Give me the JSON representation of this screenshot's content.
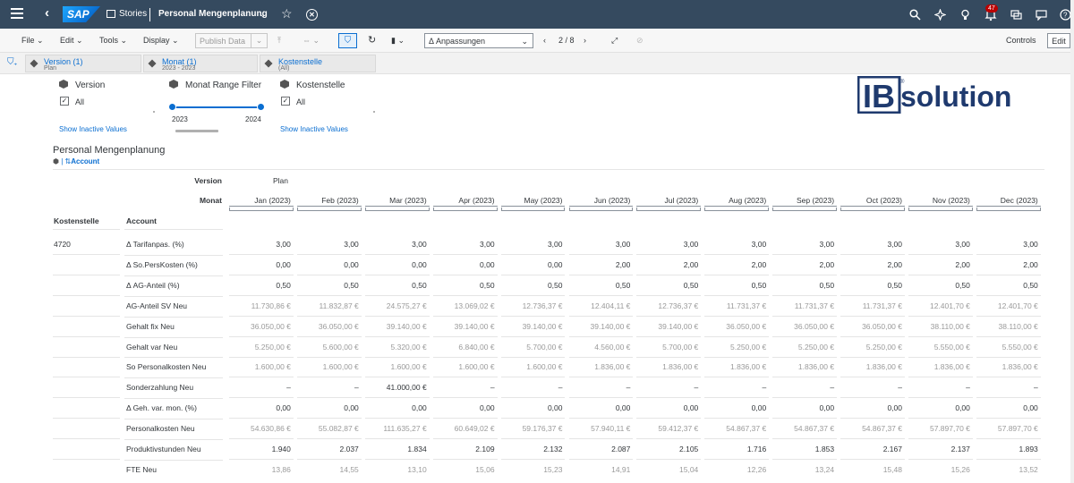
{
  "shell": {
    "product": "SAP",
    "section": "Stories",
    "title": "Personal Mengenplanung",
    "notifications": "47"
  },
  "toolbar": {
    "file": "File",
    "edit": "Edit",
    "tools": "Tools",
    "display": "Display",
    "publish": "Publish Data",
    "variant": "Δ Anpassungen",
    "page": "2 / 8",
    "controls": "Controls",
    "edit_btn": "Edit"
  },
  "filterbar": {
    "chips": [
      {
        "title": "Version (1)",
        "sub": "Plan"
      },
      {
        "title": "Monat (1)",
        "sub": "2023 - 2023"
      },
      {
        "title": "Kostenstelle",
        "sub": "(All)"
      }
    ]
  },
  "controls": {
    "version": {
      "label": "Version",
      "option": "All",
      "link": "Show Inactive Values"
    },
    "monat": {
      "label": "Monat Range Filter",
      "from": "2023",
      "to": "2024"
    },
    "kostenstelle": {
      "label": "Kostenstelle",
      "option": "All",
      "link": "Show Inactive Values"
    }
  },
  "logo": {
    "text": "IBsolution",
    "mark": "®"
  },
  "table": {
    "title": "Personal Mengenplanung",
    "sort_label": "Account",
    "version_label": "Version",
    "version_value": "Plan",
    "monat_label": "Monat",
    "col_kostenstelle": "Kostenstelle",
    "col_account": "Account",
    "kostenstelle_value": "4720",
    "months": [
      "Jan (2023)",
      "Feb (2023)",
      "Mar (2023)",
      "Apr (2023)",
      "May (2023)",
      "Jun (2023)",
      "Jul (2023)",
      "Aug (2023)",
      "Sep (2023)",
      "Oct (2023)",
      "Nov (2023)",
      "Dec (2023)"
    ],
    "rows": [
      {
        "label": "Δ Tarifanpas. (%)",
        "grey": false,
        "values": [
          "3,00",
          "3,00",
          "3,00",
          "3,00",
          "3,00",
          "3,00",
          "3,00",
          "3,00",
          "3,00",
          "3,00",
          "3,00",
          "3,00"
        ]
      },
      {
        "label": "Δ So.PersKosten (%)",
        "grey": false,
        "values": [
          "0,00",
          "0,00",
          "0,00",
          "0,00",
          "0,00",
          "2,00",
          "2,00",
          "2,00",
          "2,00",
          "2,00",
          "2,00",
          "2,00"
        ]
      },
      {
        "label": "Δ AG-Anteil (%)",
        "grey": false,
        "values": [
          "0,50",
          "0,50",
          "0,50",
          "0,50",
          "0,50",
          "0,50",
          "0,50",
          "0,50",
          "0,50",
          "0,50",
          "0,50",
          "0,50"
        ]
      },
      {
        "label": "AG-Anteil SV Neu",
        "grey": true,
        "values": [
          "11.730,86 €",
          "11.832,87 €",
          "24.575,27 €",
          "13.069,02 €",
          "12.736,37 €",
          "12.404,11 €",
          "12.736,37 €",
          "11.731,37 €",
          "11.731,37 €",
          "11.731,37 €",
          "12.401,70 €",
          "12.401,70 €"
        ]
      },
      {
        "label": "Gehalt fix Neu",
        "grey": true,
        "values": [
          "36.050,00 €",
          "36.050,00 €",
          "39.140,00 €",
          "39.140,00 €",
          "39.140,00 €",
          "39.140,00 €",
          "39.140,00 €",
          "36.050,00 €",
          "36.050,00 €",
          "36.050,00 €",
          "38.110,00 €",
          "38.110,00 €"
        ]
      },
      {
        "label": "Gehalt var Neu",
        "grey": true,
        "values": [
          "5.250,00 €",
          "5.600,00 €",
          "5.320,00 €",
          "6.840,00 €",
          "5.700,00 €",
          "4.560,00 €",
          "5.700,00 €",
          "5.250,00 €",
          "5.250,00 €",
          "5.250,00 €",
          "5.550,00 €",
          "5.550,00 €"
        ]
      },
      {
        "label": "So Personalkosten Neu",
        "grey": true,
        "values": [
          "1.600,00 €",
          "1.600,00 €",
          "1.600,00 €",
          "1.600,00 €",
          "1.600,00 €",
          "1.836,00 €",
          "1.836,00 €",
          "1.836,00 €",
          "1.836,00 €",
          "1.836,00 €",
          "1.836,00 €",
          "1.836,00 €"
        ]
      },
      {
        "label": "Sonderzahlung Neu",
        "grey": false,
        "values": [
          "–",
          "–",
          "41.000,00 €",
          "–",
          "–",
          "–",
          "–",
          "–",
          "–",
          "–",
          "–",
          "–"
        ]
      },
      {
        "label": "Δ Geh. var. mon. (%)",
        "grey": false,
        "values": [
          "0,00",
          "0,00",
          "0,00",
          "0,00",
          "0,00",
          "0,00",
          "0,00",
          "0,00",
          "0,00",
          "0,00",
          "0,00",
          "0,00"
        ]
      },
      {
        "label": "Personalkosten Neu",
        "grey": true,
        "values": [
          "54.630,86 €",
          "55.082,87 €",
          "111.635,27 €",
          "60.649,02 €",
          "59.176,37 €",
          "57.940,11 €",
          "59.412,37 €",
          "54.867,37 €",
          "54.867,37 €",
          "54.867,37 €",
          "57.897,70 €",
          "57.897,70 €"
        ]
      },
      {
        "label": "Produktivstunden Neu",
        "grey": false,
        "values": [
          "1.940",
          "2.037",
          "1.834",
          "2.109",
          "2.132",
          "2.087",
          "2.105",
          "1.716",
          "1.853",
          "2.167",
          "2.137",
          "1.893"
        ]
      },
      {
        "label": "FTE Neu",
        "grey": true,
        "values": [
          "13,86",
          "14,55",
          "13,10",
          "15,06",
          "15,23",
          "14,91",
          "15,04",
          "12,26",
          "13,24",
          "15,48",
          "15,26",
          "13,52"
        ]
      }
    ]
  }
}
